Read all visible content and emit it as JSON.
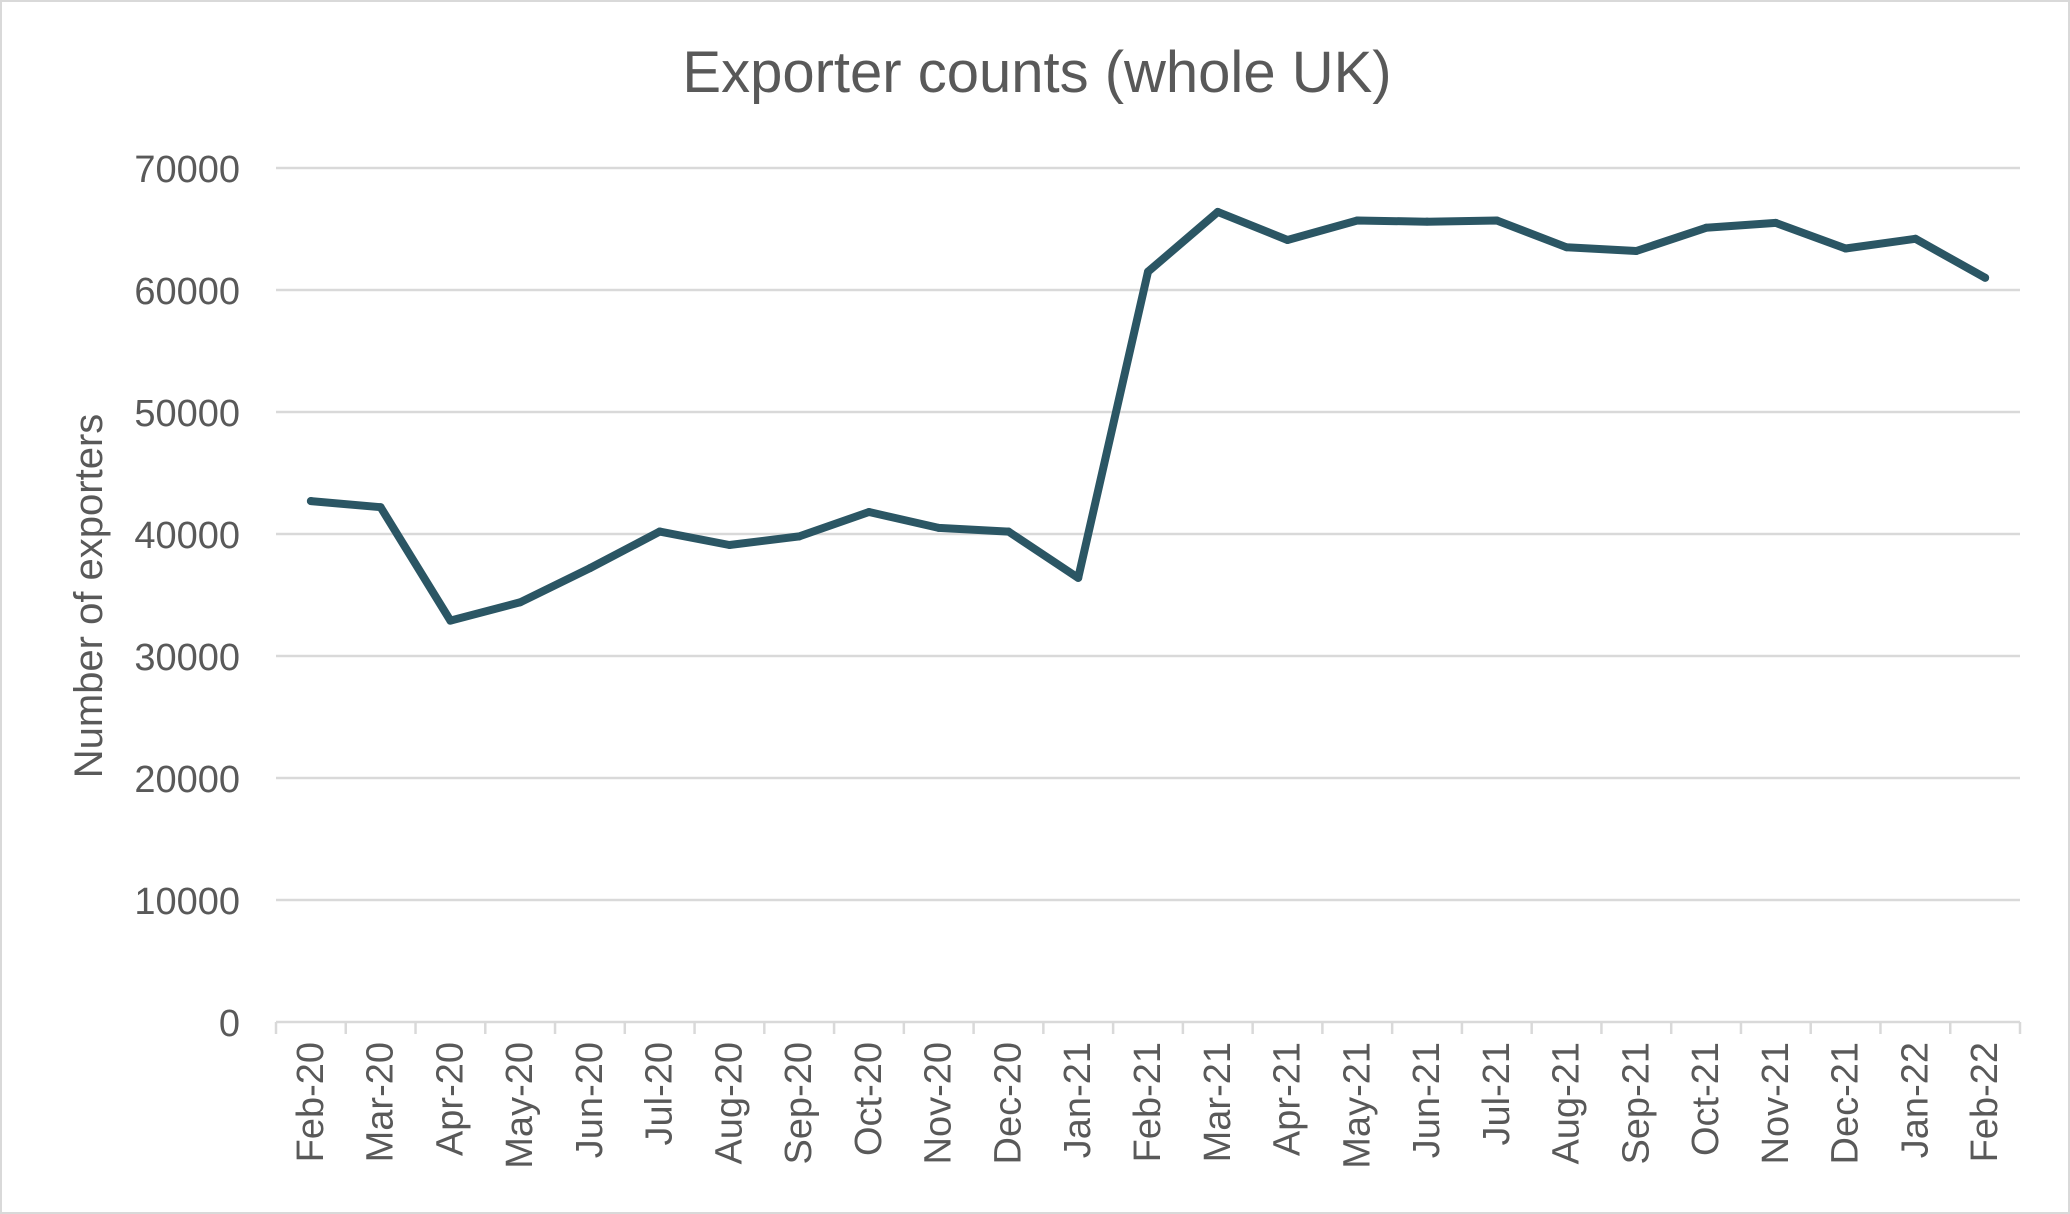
{
  "chart_data": {
    "type": "line",
    "title": "Exporter counts (whole UK)",
    "xlabel": "",
    "ylabel": "Number of exporters",
    "categories": [
      "Feb-20",
      "Mar-20",
      "Apr-20",
      "May-20",
      "Jun-20",
      "Jul-20",
      "Aug-20",
      "Sep-20",
      "Oct-20",
      "Nov-20",
      "Dec-20",
      "Jan-21",
      "Feb-21",
      "Mar-21",
      "Apr-21",
      "May-21",
      "Jun-21",
      "Jul-21",
      "Aug-21",
      "Sep-21",
      "Oct-21",
      "Nov-21",
      "Dec-21",
      "Jan-22",
      "Feb-22"
    ],
    "series": [
      {
        "values": [
          42700,
          42200,
          32900,
          34400,
          37200,
          40200,
          39100,
          39800,
          41800,
          40500,
          40200,
          36400,
          61500,
          66400,
          64100,
          65700,
          65600,
          65700,
          63500,
          63200,
          65100,
          65500,
          63400,
          64200,
          61000
        ],
        "color": "#2b5664"
      }
    ],
    "ylim": [
      0,
      70000
    ],
    "yticks": [
      "0",
      "10000",
      "20000",
      "30000",
      "40000",
      "50000",
      "60000",
      "70000"
    ],
    "grid": true,
    "legend": "none",
    "colors": {
      "line": "#2b5664",
      "grid": "#d9d9d9",
      "text": "#595959"
    }
  }
}
